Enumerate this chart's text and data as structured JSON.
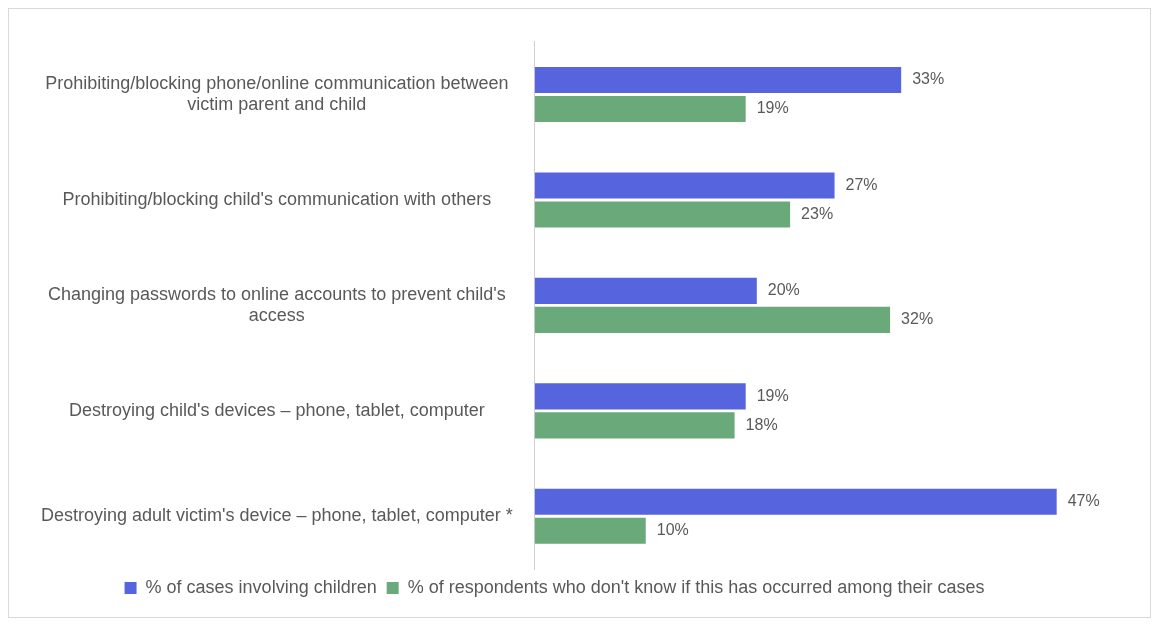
{
  "chart_data": {
    "type": "bar",
    "orientation": "horizontal",
    "categories": [
      "Prohibiting/blocking phone/online communication between victim parent and child",
      "Prohibiting/blocking child's communication with others",
      "Changing passwords to online accounts to prevent child's access",
      "Destroying child's devices – phone, tablet, computer",
      "Destroying adult victim's device – phone, tablet, computer *"
    ],
    "series": [
      {
        "name": "% of cases involving children",
        "color": "#5665de",
        "values": [
          33,
          27,
          20,
          19,
          47
        ],
        "value_labels": [
          "33%",
          "27%",
          "20%",
          "19%",
          "47%"
        ]
      },
      {
        "name": "% of respondents who don't know if this has occurred among their cases",
        "color": "#6aa97a",
        "values": [
          19,
          23,
          32,
          18,
          10
        ],
        "value_labels": [
          "19%",
          "23%",
          "32%",
          "18%",
          "10%"
        ]
      }
    ],
    "legend": "bottom",
    "grid": false
  }
}
